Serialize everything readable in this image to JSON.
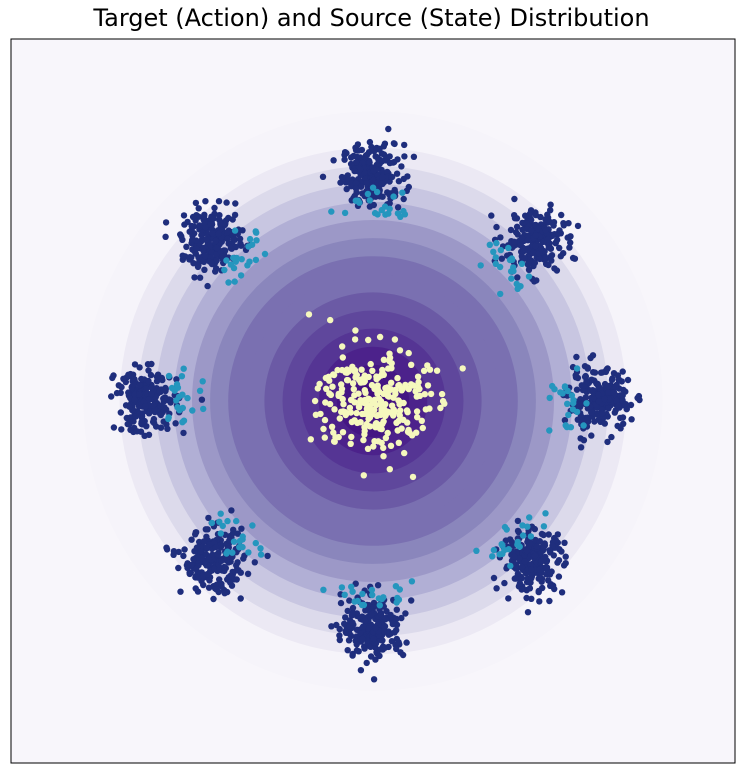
{
  "chart_data": {
    "type": "scatter",
    "title": "Target (Action) and Source (State) Distribution",
    "xlabel": "",
    "ylabel": "",
    "xlim": [
      -4.0,
      4.0
    ],
    "ylim": [
      -4.0,
      4.0
    ],
    "grid": false,
    "axis_ticks": false,
    "background_contour": {
      "kind": "concentric-gaussian-density",
      "center": [
        0.0,
        0.0
      ],
      "levels": 16,
      "outer_radius": 3.2,
      "colormap": [
        "#f6f4fa",
        "#ece9f4",
        "#dcdaeb",
        "#c8c6e1",
        "#b1afd5",
        "#9c98c7",
        "#8a86bc",
        "#7a70b1",
        "#6b5aa5",
        "#5f479c",
        "#553594",
        "#4c228b",
        "#441683",
        "#3f0c7d"
      ]
    },
    "series": [
      {
        "role": "target",
        "color": "#1f2e7d",
        "cluster_std": 0.17,
        "points_per_cluster": 220,
        "cluster_centers": [
          [
            0.0,
            2.5
          ],
          [
            1.77,
            1.77
          ],
          [
            2.5,
            0.0
          ],
          [
            1.77,
            -1.77
          ],
          [
            0.0,
            -2.5
          ],
          [
            -1.77,
            -1.77
          ],
          [
            -2.5,
            0.0
          ],
          [
            -1.77,
            1.77
          ]
        ]
      },
      {
        "role": "transported",
        "color": "#2596be",
        "points_per_cluster": 22,
        "inner_radius": 2.15
      },
      {
        "role": "source",
        "color": "#f5f8bd",
        "center": [
          0.0,
          0.0
        ],
        "std": 0.3,
        "points": 260
      }
    ]
  }
}
